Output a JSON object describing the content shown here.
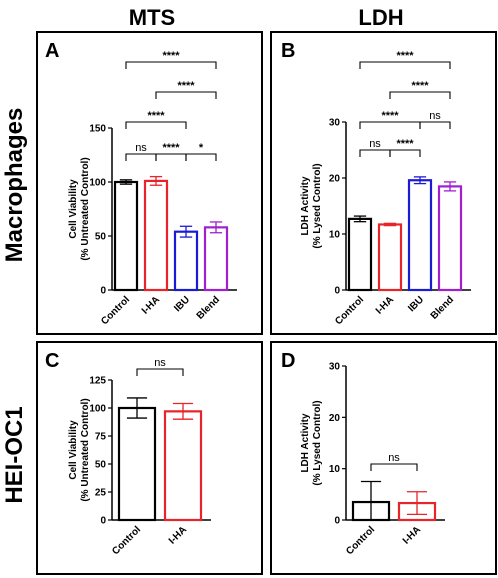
{
  "column_titles": [
    "MTS",
    "LDH"
  ],
  "row_titles": [
    "Macrophages",
    "HEI-OC1"
  ],
  "colors": {
    "Control": "#000000",
    "I-HA": "#e8232a",
    "IBU": "#1b1bd6",
    "Blend": "#a020d0"
  },
  "chart_data": [
    {
      "panel": "A",
      "type": "bar",
      "ylabel": "Cell Viability\n(% Untreated Control)",
      "ylim": [
        0,
        150
      ],
      "yticks": [
        0,
        50,
        100,
        150
      ],
      "categories": [
        "Control",
        "I-HA",
        "IBU",
        "Blend"
      ],
      "values": [
        100,
        101,
        54,
        58
      ],
      "errors": [
        2,
        4,
        5,
        5
      ],
      "comparisons": [
        {
          "pair": [
            "Control",
            "Blend"
          ],
          "label": "****"
        },
        {
          "pair": [
            "I-HA",
            "Blend"
          ],
          "label": "****"
        },
        {
          "pair": [
            "Control",
            "IBU"
          ],
          "label": "****"
        },
        {
          "pair": [
            "Control",
            "I-HA"
          ],
          "label": "ns"
        },
        {
          "pair": [
            "I-HA",
            "IBU"
          ],
          "label": "****"
        },
        {
          "pair": [
            "IBU",
            "Blend"
          ],
          "label": "*"
        }
      ]
    },
    {
      "panel": "B",
      "type": "bar",
      "ylabel": "LDH Activity\n(% Lysed Control)",
      "ylim": [
        0,
        30
      ],
      "yticks": [
        0,
        10,
        20,
        30
      ],
      "categories": [
        "Control",
        "I-HA",
        "IBU",
        "Blend"
      ],
      "values": [
        12.7,
        11.7,
        19.6,
        18.5
      ],
      "errors": [
        0.5,
        0.2,
        0.6,
        0.8
      ],
      "comparisons": [
        {
          "pair": [
            "Control",
            "Blend"
          ],
          "label": "****"
        },
        {
          "pair": [
            "I-HA",
            "Blend"
          ],
          "label": "****"
        },
        {
          "pair": [
            "Control",
            "IBU"
          ],
          "label": "****"
        },
        {
          "pair": [
            "IBU",
            "Blend"
          ],
          "label": "ns"
        },
        {
          "pair": [
            "Control",
            "I-HA"
          ],
          "label": "ns"
        },
        {
          "pair": [
            "I-HA",
            "IBU"
          ],
          "label": "****"
        }
      ]
    },
    {
      "panel": "C",
      "type": "bar",
      "ylabel": "Cell Viability\n(% Untreated Control)",
      "ylim": [
        0,
        125
      ],
      "yticks": [
        0,
        25,
        50,
        75,
        100,
        125
      ],
      "categories": [
        "Control",
        "I-HA"
      ],
      "values": [
        100,
        97
      ],
      "errors": [
        9,
        7
      ],
      "comparisons": [
        {
          "pair": [
            "Control",
            "I-HA"
          ],
          "label": "ns"
        }
      ]
    },
    {
      "panel": "D",
      "type": "bar",
      "ylabel": "LDH Activity\n(% Lysed Control)",
      "ylim": [
        0,
        30
      ],
      "yticks": [
        0,
        10,
        20,
        30
      ],
      "categories": [
        "Control",
        "I-HA"
      ],
      "values": [
        3.5,
        3.3
      ],
      "errors": [
        4.0,
        2.2
      ],
      "comparisons": [
        {
          "pair": [
            "Control",
            "I-HA"
          ],
          "label": "ns"
        }
      ]
    }
  ]
}
